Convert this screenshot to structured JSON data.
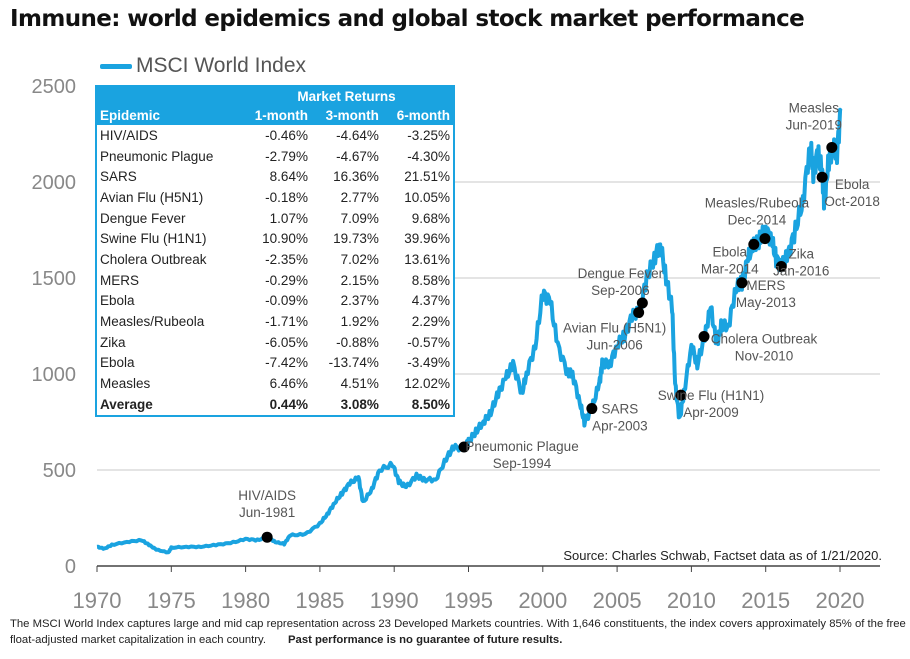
{
  "title": "Immune: world epidemics and global stock market performance",
  "source": "Source: Charles Schwab, Factset data as of 1/21/2020.",
  "footnote": "The MSCI World Index captures large and mid cap representation across 23 Developed Markets countries. With 1,646 constituents, the index covers approximately 85% of the free float-adjusted market capitalization in each country.",
  "disclaimer": "Past performance is no guarantee of future results.",
  "table": {
    "group_header": "Market Returns",
    "headers": [
      "Epidemic",
      "1-month",
      "3-month",
      "6-month"
    ],
    "rows": [
      [
        "HIV/AIDS",
        "-0.46%",
        "-4.64%",
        "-3.25%"
      ],
      [
        "Pneumonic Plague",
        "-2.79%",
        "-4.67%",
        "-4.30%"
      ],
      [
        "SARS",
        "8.64%",
        "16.36%",
        "21.51%"
      ],
      [
        "Avian Flu (H5N1)",
        "-0.18%",
        "2.77%",
        "10.05%"
      ],
      [
        "Dengue Fever",
        "1.07%",
        "7.09%",
        "9.68%"
      ],
      [
        "Swine Flu (H1N1)",
        "10.90%",
        "19.73%",
        "39.96%"
      ],
      [
        "Cholera Outbreak",
        "-2.35%",
        "7.02%",
        "13.61%"
      ],
      [
        "MERS",
        "-0.29%",
        "2.15%",
        "8.58%"
      ],
      [
        "Ebola",
        "-0.09%",
        "2.37%",
        "4.37%"
      ],
      [
        "Measles/Rubeola",
        "-1.71%",
        "1.92%",
        "2.29%"
      ],
      [
        "Zika",
        "-6.05%",
        "-0.88%",
        "-0.57%"
      ],
      [
        "Ebola",
        "-7.42%",
        "-13.74%",
        "-3.49%"
      ],
      [
        "Measles",
        "6.46%",
        "4.51%",
        "12.02%"
      ]
    ],
    "average": [
      "Average",
      "0.44%",
      "3.08%",
      "8.50%"
    ]
  },
  "chart_data": {
    "type": "line",
    "title": "Immune: world epidemics and global stock market performance",
    "xlim": [
      1970,
      2020.5
    ],
    "ylim": [
      0,
      2500
    ],
    "xticks": [
      "1970",
      "1975",
      "1980",
      "1985",
      "1990",
      "1995",
      "2000",
      "2005",
      "2010",
      "2015",
      "2020"
    ],
    "yticks": [
      "0",
      "500",
      "1000",
      "1500",
      "2000",
      "2500"
    ],
    "grid": true,
    "legend_position": "top-left",
    "line_color": "#1aa3e0",
    "series": [
      {
        "name": "MSCI World Index",
        "x": [
          1970,
          1970.5,
          1971,
          1972,
          1973,
          1973.5,
          1974,
          1974.8,
          1975,
          1976,
          1977,
          1978,
          1979,
          1980,
          1980.8,
          1981.5,
          1982,
          1982.6,
          1983,
          1984,
          1985,
          1985.5,
          1986,
          1986.5,
          1987,
          1987.6,
          1987.9,
          1988.5,
          1989,
          1989.9,
          1990.3,
          1990.8,
          1991.5,
          1992,
          1992.8,
          1993.5,
          1994,
          1994.7,
          1995,
          1995.5,
          1996,
          1996.5,
          1997,
          1997.5,
          1998,
          1998.6,
          1998.9,
          1999.5,
          2000,
          2000.5,
          2001,
          2001.7,
          2002,
          2002.5,
          2002.8,
          2003.3,
          2003.8,
          2004,
          2004.5,
          2005,
          2005.5,
          2006,
          2006.5,
          2007,
          2007.5,
          2007.9,
          2008.3,
          2008.7,
          2008.9,
          2009.2,
          2009.5,
          2010,
          2010.4,
          2010.9,
          2011.3,
          2011.7,
          2012,
          2012.5,
          2013,
          2013.4,
          2013.8,
          2014.2,
          2014.6,
          2015,
          2015.4,
          2015.7,
          2016.1,
          2016.5,
          2017,
          2017.5,
          2018,
          2018.2,
          2018.5,
          2018.8,
          2018.95,
          2019.2,
          2019.5,
          2019.8,
          2020.05
        ],
        "y": [
          100,
          90,
          110,
          125,
          135,
          110,
          85,
          70,
          95,
          100,
          100,
          110,
          120,
          140,
          135,
          150,
          125,
          115,
          160,
          165,
          220,
          270,
          330,
          380,
          430,
          460,
          330,
          400,
          500,
          530,
          440,
          410,
          470,
          450,
          450,
          560,
          620,
          610,
          650,
          700,
          750,
          800,
          900,
          980,
          1050,
          900,
          1000,
          1150,
          1420,
          1380,
          1150,
          1000,
          1000,
          850,
          750,
          820,
          950,
          1050,
          1050,
          1150,
          1200,
          1300,
          1320,
          1500,
          1600,
          1680,
          1500,
          1350,
          950,
          760,
          900,
          1150,
          1050,
          1200,
          1350,
          1150,
          1250,
          1250,
          1450,
          1475,
          1600,
          1680,
          1700,
          1750,
          1700,
          1600,
          1560,
          1620,
          1750,
          1900,
          2200,
          2050,
          2150,
          2050,
          1880,
          2100,
          2180,
          2150,
          2370
        ]
      }
    ],
    "annotations": [
      {
        "label": "HIV/AIDS",
        "date": "Jun-1981",
        "x": 1981.45,
        "y": 150
      },
      {
        "label": "Pneumonic Plague",
        "date": "Sep-1994",
        "x": 1994.7,
        "y": 620
      },
      {
        "label": "SARS",
        "date": "Apr-2003",
        "x": 2003.3,
        "y": 820
      },
      {
        "label": "Avian Flu (H5N1)",
        "date": "Jun-2006",
        "x": 2006.45,
        "y": 1320
      },
      {
        "label": "Dengue Fever",
        "date": "Sep-2006",
        "x": 2006.7,
        "y": 1370
      },
      {
        "label": "Swine Flu (H1N1)",
        "date": "Apr-2009",
        "x": 2009.3,
        "y": 890
      },
      {
        "label": "Cholera Outbreak",
        "date": "Nov-2010",
        "x": 2010.85,
        "y": 1195
      },
      {
        "label": "MERS",
        "date": "May-2013",
        "x": 2013.4,
        "y": 1475
      },
      {
        "label": "Ebola",
        "date": "Mar-2014",
        "x": 2014.2,
        "y": 1675
      },
      {
        "label": "Measles/Rubeola",
        "date": "Dec-2014",
        "x": 2014.95,
        "y": 1705
      },
      {
        "label": "Zika",
        "date": "Jan-2016",
        "x": 2016.05,
        "y": 1560
      },
      {
        "label": "Ebola",
        "date": "Oct-2018",
        "x": 2018.8,
        "y": 2025
      },
      {
        "label": "Measles",
        "date": "Jun-2019",
        "x": 2019.45,
        "y": 2180
      }
    ]
  }
}
